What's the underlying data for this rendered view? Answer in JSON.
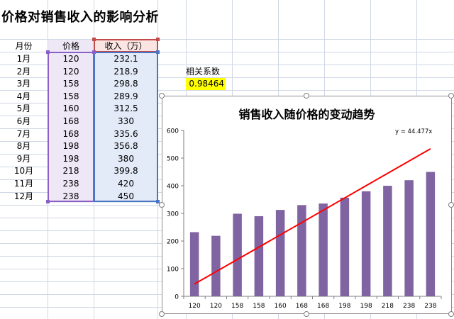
{
  "sheet": {
    "title": "价格对销售收入的影响分析",
    "headers": {
      "month": "月份",
      "price": "价格",
      "revenue": "收入（万）"
    },
    "rows": [
      {
        "month": "1月",
        "price": "120",
        "revenue": "232.1"
      },
      {
        "month": "2月",
        "price": "120",
        "revenue": "218.9"
      },
      {
        "month": "3月",
        "price": "158",
        "revenue": "298.8"
      },
      {
        "month": "4月",
        "price": "158",
        "revenue": "289.9"
      },
      {
        "month": "5月",
        "price": "160",
        "revenue": "312.5"
      },
      {
        "month": "6月",
        "price": "168",
        "revenue": "330"
      },
      {
        "month": "7月",
        "price": "168",
        "revenue": "335.6"
      },
      {
        "month": "8月",
        "price": "198",
        "revenue": "356.8"
      },
      {
        "month": "9月",
        "price": "198",
        "revenue": "380"
      },
      {
        "month": "10月",
        "price": "218",
        "revenue": "399.8"
      },
      {
        "month": "11月",
        "price": "238",
        "revenue": "420"
      },
      {
        "month": "12月",
        "price": "238",
        "revenue": "450"
      }
    ],
    "correlation_label": "相关系数",
    "correlation_value": "0.98464",
    "correlation_highlight": "#ffff00"
  },
  "chart_data": {
    "type": "bar",
    "title": "销售收入随价格的变动趋势",
    "categories": [
      "120",
      "120",
      "158",
      "158",
      "160",
      "168",
      "168",
      "198",
      "198",
      "218",
      "238",
      "238"
    ],
    "series": [
      {
        "values": [
          232.1,
          218.9,
          298.8,
          289.9,
          312.5,
          330,
          335.6,
          356.8,
          380,
          399.8,
          420,
          450
        ],
        "color": "#8064a2"
      }
    ],
    "trendline": {
      "equation": "y = 44.477x",
      "slope": 44.477,
      "color": "#ff0000"
    },
    "yticks": [
      "0",
      "100",
      "200",
      "300",
      "400",
      "500",
      "600"
    ],
    "ylim": [
      0,
      600
    ],
    "xlabel": "",
    "ylabel": "",
    "grid": false,
    "legend": "none"
  }
}
